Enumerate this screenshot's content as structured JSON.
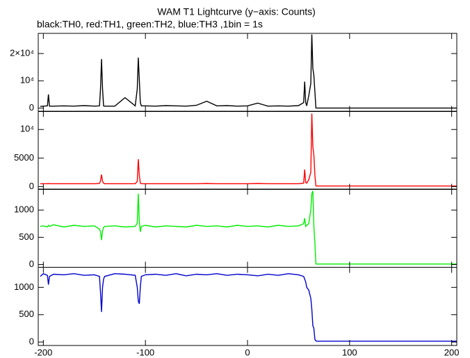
{
  "chart_data": [
    {
      "type": "line",
      "title": "WAM T1 Lightcurve (y−axis: Counts)",
      "subtitle": "black:TH0, red:TH1, green:TH2, blue:TH3 ,1bin = 1s",
      "color": "#000000",
      "x": [
        -203,
        -200,
        -196,
        -195,
        -194,
        -190,
        -180,
        -170,
        -160,
        -150,
        -145,
        -144,
        -143,
        -142,
        -141,
        -140,
        -130,
        -120,
        -110,
        -108,
        -107,
        -106,
        -105,
        -104,
        -100,
        -90,
        -80,
        -70,
        -60,
        -50,
        -40,
        -30,
        -20,
        -10,
        0,
        10,
        20,
        30,
        40,
        50,
        55,
        56,
        57,
        58,
        60,
        62,
        63,
        64,
        65,
        66,
        67,
        68,
        70,
        80,
        100,
        120,
        140,
        160,
        180,
        200,
        205
      ],
      "values": [
        600,
        700,
        800,
        5000,
        700,
        700,
        800,
        700,
        900,
        700,
        800,
        7000,
        18000,
        7000,
        800,
        700,
        700,
        3800,
        800,
        7000,
        18500,
        10500,
        2000,
        800,
        800,
        700,
        900,
        800,
        700,
        1000,
        2500,
        800,
        900,
        700,
        800,
        1800,
        700,
        800,
        700,
        900,
        2000,
        9700,
        2000,
        800,
        4500,
        9000,
        27000,
        14500,
        12000,
        6000,
        0,
        0,
        0,
        0,
        0,
        0,
        0,
        0,
        0,
        0,
        0
      ],
      "xlim": [
        -205,
        205
      ],
      "ylim": [
        -1300,
        27400
      ],
      "yticks": [
        0,
        {
          "value": 10000,
          "label": "10⁴"
        },
        {
          "value": 20000,
          "label": "2×10⁴"
        }
      ]
    },
    {
      "type": "line",
      "color": "#ff0000",
      "x": [
        -203,
        -200,
        -196,
        -195,
        -194,
        -190,
        -180,
        -170,
        -160,
        -150,
        -145,
        -144,
        -143,
        -142,
        -141,
        -140,
        -130,
        -120,
        -110,
        -108,
        -107,
        -106,
        -105,
        -104,
        -100,
        -90,
        -80,
        -70,
        -60,
        -50,
        -40,
        -30,
        -20,
        -10,
        0,
        10,
        20,
        30,
        40,
        50,
        55,
        56,
        57,
        58,
        60,
        62,
        63,
        64,
        65,
        66,
        67,
        68,
        70,
        80,
        100,
        120,
        140,
        160,
        180,
        200,
        205
      ],
      "values": [
        500,
        500,
        500,
        550,
        500,
        500,
        500,
        500,
        500,
        500,
        550,
        1000,
        2100,
        900,
        600,
        500,
        500,
        500,
        500,
        900,
        4800,
        2000,
        600,
        500,
        500,
        500,
        500,
        500,
        500,
        500,
        550,
        500,
        500,
        500,
        500,
        550,
        500,
        500,
        500,
        500,
        600,
        3000,
        700,
        600,
        1200,
        2500,
        12800,
        7000,
        5500,
        2000,
        100,
        100,
        100,
        100,
        100,
        100,
        100,
        100,
        100,
        100,
        100
      ],
      "xlim": [
        -205,
        205
      ],
      "ylim": [
        -500,
        13200
      ],
      "yticks": [
        0,
        5000,
        {
          "value": 10000,
          "label": "10⁴"
        }
      ]
    },
    {
      "type": "line",
      "color": "#00ee00",
      "x": [
        -203,
        -200,
        -196,
        -195,
        -194,
        -190,
        -180,
        -170,
        -160,
        -150,
        -145,
        -144,
        -143,
        -142,
        -141,
        -140,
        -130,
        -120,
        -110,
        -108,
        -107,
        -106,
        -105,
        -104,
        -100,
        -90,
        -80,
        -70,
        -60,
        -50,
        -40,
        -30,
        -20,
        -10,
        0,
        10,
        20,
        30,
        40,
        50,
        55,
        56,
        57,
        58,
        60,
        62,
        63,
        64,
        65,
        66,
        67,
        68,
        70,
        80,
        100,
        120,
        140,
        160,
        180,
        200,
        205
      ],
      "values": [
        700,
        710,
        690,
        720,
        700,
        730,
        690,
        720,
        700,
        710,
        650,
        600,
        450,
        620,
        680,
        700,
        710,
        690,
        700,
        760,
        1300,
        800,
        600,
        700,
        720,
        690,
        710,
        700,
        690,
        720,
        700,
        710,
        690,
        720,
        700,
        710,
        690,
        720,
        700,
        710,
        750,
        850,
        700,
        720,
        750,
        1000,
        1300,
        1350,
        700,
        400,
        10,
        10,
        10,
        10,
        10,
        10,
        10,
        10,
        10,
        10,
        10
      ],
      "xlim": [
        -205,
        205
      ],
      "ylim": [
        -50,
        1385
      ],
      "yticks": [
        0,
        500,
        1000
      ]
    },
    {
      "type": "line",
      "color": "#0000cc",
      "x": [
        -203,
        -200,
        -196,
        -195,
        -194,
        -190,
        -180,
        -170,
        -160,
        -150,
        -145,
        -144,
        -143,
        -142,
        -141,
        -140,
        -130,
        -120,
        -110,
        -108,
        -107,
        -106,
        -105,
        -104,
        -100,
        -90,
        -80,
        -70,
        -60,
        -50,
        -40,
        -30,
        -20,
        -10,
        0,
        10,
        20,
        30,
        40,
        50,
        55,
        56,
        57,
        58,
        60,
        62,
        63,
        64,
        65,
        66,
        67,
        68,
        70,
        80,
        100,
        120,
        140,
        160,
        180,
        200,
        205
      ],
      "values": [
        1200,
        1250,
        1220,
        1050,
        1200,
        1240,
        1230,
        1250,
        1220,
        1230,
        1200,
        900,
        550,
        1000,
        1150,
        1200,
        1250,
        1240,
        1220,
        1000,
        750,
        700,
        1000,
        1200,
        1230,
        1240,
        1220,
        1250,
        1210,
        1240,
        1230,
        1250,
        1220,
        1240,
        1230,
        1210,
        1240,
        1220,
        1250,
        1230,
        1200,
        1150,
        1100,
        1000,
        950,
        800,
        600,
        300,
        250,
        50,
        20,
        15,
        15,
        15,
        15,
        15,
        15,
        15,
        15,
        15,
        15
      ],
      "xlim": [
        -205,
        205
      ],
      "ylim": [
        -63,
        1367
      ],
      "yticks": [
        0,
        500,
        1000
      ],
      "xticks": [
        -200,
        -100,
        0,
        100,
        200
      ]
    }
  ]
}
